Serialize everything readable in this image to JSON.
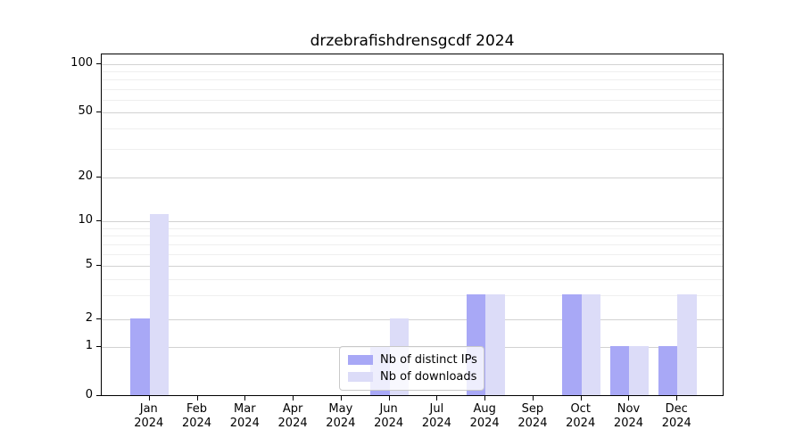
{
  "chart_data": {
    "type": "bar",
    "title": "drzebrafishdrensgcdf 2024",
    "categories": [
      "Jan",
      "Feb",
      "Mar",
      "Apr",
      "May",
      "Jun",
      "Jul",
      "Aug",
      "Sep",
      "Oct",
      "Nov",
      "Dec"
    ],
    "category_year": "2024",
    "series": [
      {
        "name": "Nb of distinct IPs",
        "color": "#a8a8f6",
        "values": [
          2,
          0,
          0,
          0,
          0,
          1,
          0,
          3,
          0,
          3,
          1,
          1
        ]
      },
      {
        "name": "Nb of downloads",
        "color": "#dcdcf8",
        "values": [
          11,
          0,
          0,
          0,
          0,
          2,
          0,
          3,
          0,
          3,
          1,
          3
        ]
      }
    ],
    "y_axis": {
      "scale": "symlog",
      "tick_values": [
        0,
        1,
        2,
        5,
        10,
        20,
        50,
        100
      ],
      "tick_labels": [
        "0",
        "1",
        "2",
        "5",
        "10",
        "20",
        "50",
        "100"
      ],
      "minor_tick_values": [
        3,
        4,
        6,
        7,
        8,
        9,
        30,
        40,
        60,
        70,
        80,
        90
      ],
      "range": [
        0,
        130
      ]
    },
    "grid": true,
    "legend_position": "inside lower center"
  },
  "colors": {
    "background": "#ffffff",
    "spine": "#000000",
    "major_grid": "#d2d2d2",
    "minor_grid": "#efefef",
    "legend_border": "#c9c9c9"
  }
}
